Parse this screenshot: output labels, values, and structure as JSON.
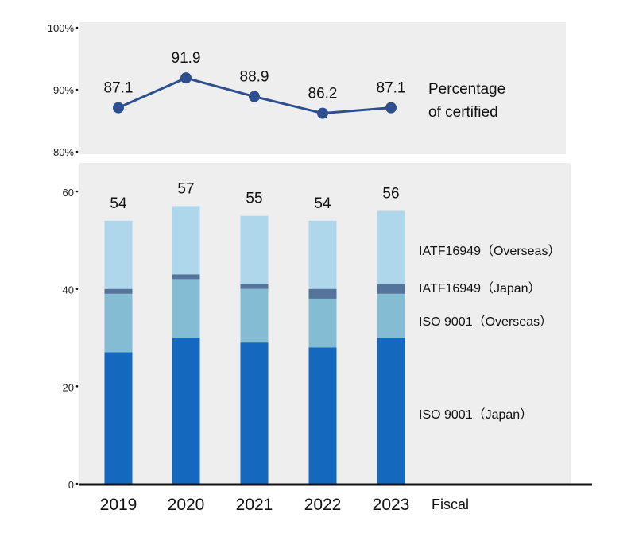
{
  "chart_data": [
    {
      "type": "line",
      "categories": [
        "2019",
        "2020",
        "2021",
        "2022",
        "2023"
      ],
      "series": [
        {
          "name": "Percentage of certified",
          "values": [
            87.1,
            91.9,
            88.9,
            86.2,
            87.1
          ]
        }
      ],
      "data_labels": [
        "87.1",
        "91.9",
        "88.9",
        "86.2",
        "87.1"
      ],
      "ylim": [
        80,
        100
      ],
      "yticks": [
        80,
        90,
        100
      ],
      "ytick_labels": [
        "80%",
        "90%",
        "100%"
      ],
      "legend_lines": [
        "Percentage",
        "of certified"
      ],
      "line_color": "#2e4f8f",
      "background": "#eeeeee"
    },
    {
      "type": "bar",
      "stacked": true,
      "categories": [
        "2019",
        "2020",
        "2021",
        "2022",
        "2023"
      ],
      "series": [
        {
          "name": "ISO 9001（Japan）",
          "values": [
            27,
            30,
            29,
            28,
            30
          ],
          "color": "#1468bd"
        },
        {
          "name": "ISO 9001（Overseas）",
          "values": [
            12,
            12,
            11,
            10,
            9
          ],
          "color": "#84bcd4"
        },
        {
          "name": "IATF16949（Japan）",
          "values": [
            1,
            1,
            1,
            2,
            2
          ],
          "color": "#55749b"
        },
        {
          "name": "IATF16949（Overseas）",
          "values": [
            14,
            14,
            14,
            14,
            15
          ],
          "color": "#aed7ec"
        }
      ],
      "totals": [
        "54",
        "57",
        "55",
        "54",
        "56"
      ],
      "ylim": [
        0,
        60
      ],
      "yticks": [
        "0",
        "20",
        "40",
        "60"
      ],
      "xlabel": "Fiscal",
      "background": "#eeeeee"
    }
  ]
}
